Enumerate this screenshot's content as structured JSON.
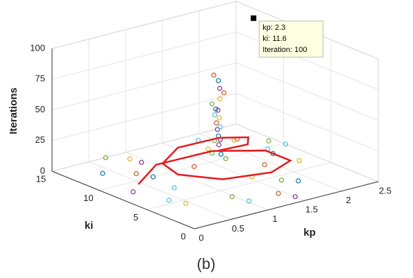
{
  "chart_data": {
    "type": "scatter3d",
    "zlabel": "Iterations",
    "ylabel": "ki",
    "xlabel": "kp",
    "xlim": [
      0,
      2.5
    ],
    "xticks": [
      0,
      0.5,
      1,
      1.5,
      2,
      2.5
    ],
    "ylim": [
      0,
      15
    ],
    "yticks": [
      0,
      5,
      10,
      15
    ],
    "zlim": [
      0,
      100
    ],
    "zticks": [
      0,
      25,
      50,
      75,
      100
    ],
    "grid": true,
    "series": [
      {
        "color": "#0072BD",
        "kp": [
          0.3,
          1.8,
          1.1,
          1.0,
          1.2,
          0.6,
          2.1,
          1.1
        ],
        "ki": [
          12,
          3,
          6,
          5.5,
          6.5,
          9,
          8,
          6
        ],
        "iterations": [
          3,
          2,
          40,
          65,
          22,
          5,
          4,
          85
        ]
      },
      {
        "color": "#D95319",
        "kp": [
          0.5,
          1.4,
          1.1,
          1.15,
          0.9,
          2.0,
          1.6,
          1.05
        ],
        "ki": [
          10,
          2,
          6.2,
          5.8,
          7,
          11,
          5,
          6.1
        ],
        "iterations": [
          6,
          1,
          50,
          75,
          15,
          8,
          12,
          90
        ]
      },
      {
        "color": "#EDB120",
        "kp": [
          0.8,
          2.2,
          1.1,
          1.0,
          1.3,
          0.4,
          1.12,
          1.7
        ],
        "ki": [
          13,
          6,
          5.9,
          6.3,
          4,
          4,
          6,
          9
        ],
        "iterations": [
          4,
          3,
          55,
          30,
          10,
          2,
          70,
          18
        ]
      },
      {
        "color": "#7E2F8E",
        "kp": [
          0.2,
          1.5,
          1.1,
          1.08,
          0.7,
          1.9,
          1.3,
          1.12
        ],
        "ki": [
          8,
          1,
          6.1,
          5.7,
          11,
          12,
          7.5,
          6.2
        ],
        "iterations": [
          2,
          0,
          45,
          80,
          9,
          6,
          25,
          60
        ]
      },
      {
        "color": "#77AC30",
        "kp": [
          0.6,
          1.7,
          1.1,
          1.2,
          1.4,
          0.9,
          2.3,
          1.0
        ],
        "ki": [
          14,
          4,
          6.4,
          6,
          9,
          3,
          10,
          5.9
        ],
        "iterations": [
          5,
          1,
          35,
          20,
          12,
          3,
          5,
          68
        ]
      },
      {
        "color": "#4DBEEE",
        "kp": [
          1.0,
          2.4,
          1.1,
          0.5,
          1.6,
          1.05,
          0.3,
          1.9
        ],
        "ki": [
          2,
          9,
          5.8,
          6,
          12,
          6,
          5,
          7
        ],
        "iterations": [
          1,
          4,
          48,
          7,
          10,
          58,
          3,
          14
        ]
      }
    ],
    "path": {
      "color": "#e8181b",
      "kp": [
        1.1,
        1.5,
        1.7,
        1.5,
        1.0,
        0.6,
        0.55,
        0.9,
        1.5,
        1.95,
        2.0,
        1.6,
        0.9,
        0.4
      ],
      "ki": [
        6,
        6,
        7.5,
        9,
        9.5,
        8,
        6,
        4,
        3.5,
        5,
        8,
        10.5,
        11,
        9
      ],
      "iterations": [
        28,
        27,
        25,
        23,
        21,
        19,
        17,
        14,
        12,
        10,
        8,
        6,
        4,
        2
      ]
    },
    "datatip": {
      "kp": 2.3,
      "ki": 11.6,
      "iterations": 100,
      "lines": [
        "kp: 2.3",
        "ki: 11.6",
        "Iteration: 100"
      ]
    },
    "caption": "(b)"
  }
}
